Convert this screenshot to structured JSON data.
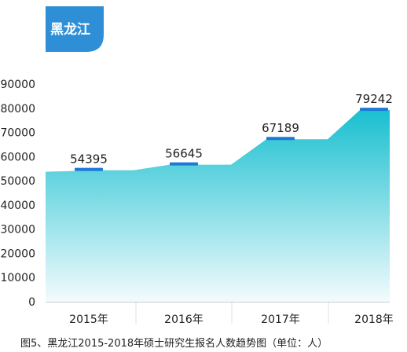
{
  "region_badge": "黑龙江",
  "caption": "图5、黑龙江2015-2018年硕士研究生报名人数趋势图（单位：人）",
  "colors": {
    "badge": "#2f8fd6",
    "area_top": "#19bfd0",
    "area_bottom": "#f3fbfd",
    "marker": "#1e78d6",
    "axis": "#999999"
  },
  "chart_data": {
    "type": "area",
    "categories": [
      "2015年",
      "2016年",
      "2017年",
      "2018年"
    ],
    "values": [
      54395,
      56645,
      67189,
      79242
    ],
    "data_labels": [
      "54395",
      "56645",
      "67189",
      "79242"
    ],
    "y_ticks": [
      "0",
      "10000",
      "20000",
      "30000",
      "40000",
      "50000",
      "60000",
      "70000",
      "80000",
      "90000"
    ],
    "ylim": [
      0,
      90000
    ],
    "grid": false,
    "legend": "none",
    "step_style": "plateau segments with ramps between years"
  }
}
